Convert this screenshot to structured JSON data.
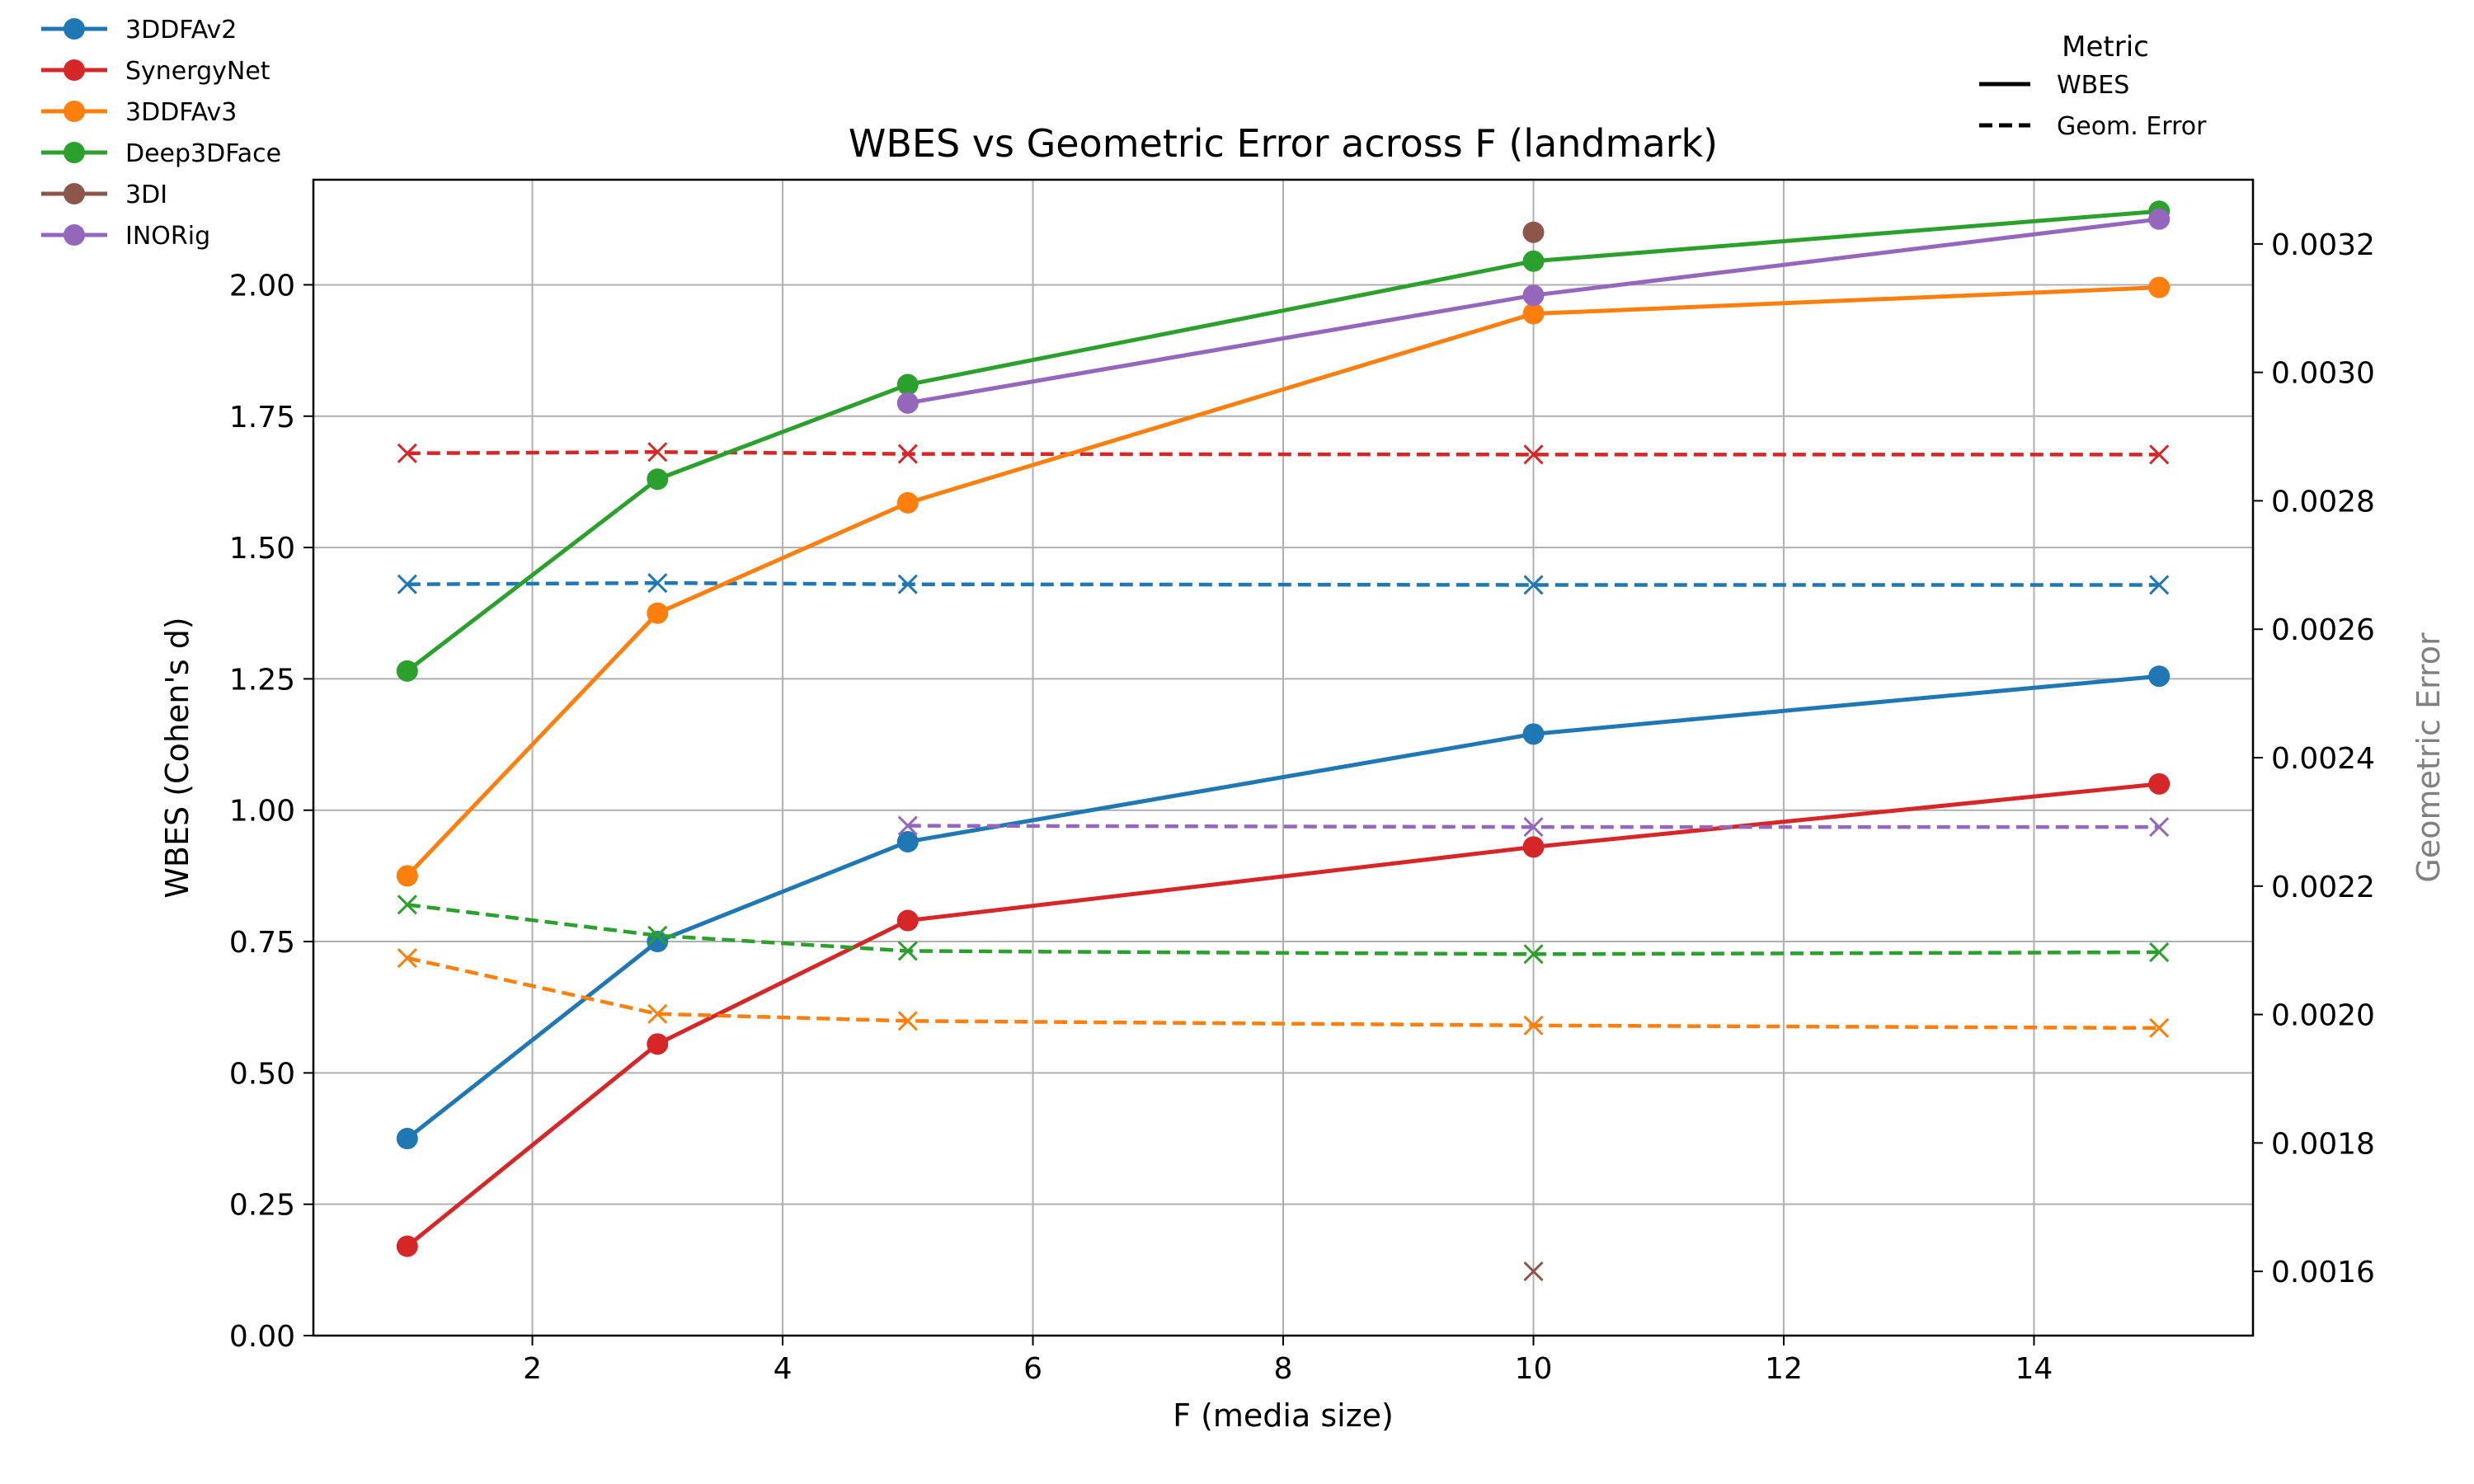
{
  "chart_data": {
    "type": "line",
    "title": "WBES vs Geometric Error across F (landmark)",
    "xlabel": "F (media size)",
    "ylabel": "WBES (Cohen's d)",
    "y2label": "Geometric Error",
    "xlim": [
      0.25,
      15.75
    ],
    "ylim": [
      0,
      2.2
    ],
    "y2lim": [
      0.0015,
      0.0033
    ],
    "xticks": [
      "2",
      "4",
      "6",
      "8",
      "10",
      "12",
      "14"
    ],
    "yticks": [
      "0.00",
      "0.25",
      "0.50",
      "0.75",
      "1.00",
      "1.25",
      "1.50",
      "1.75",
      "2.00"
    ],
    "y2ticks": [
      "0.0016",
      "0.0018",
      "0.0020",
      "0.0022",
      "0.0024",
      "0.0026",
      "0.0028",
      "0.0030",
      "0.0032"
    ],
    "grid": true,
    "legend": {
      "placement": "top-left outside"
    },
    "metric_legend": {
      "title": "Metric",
      "entries": [
        "WBES",
        "Geom. Error"
      ]
    },
    "series": [
      {
        "name": "3DDFAv2",
        "color": "#1f77b4",
        "x": [
          1,
          3,
          5,
          10,
          15
        ],
        "wbes": [
          0.375,
          0.75,
          0.94,
          1.145,
          1.255
        ],
        "geom": [
          0.00267,
          0.002672,
          0.00267,
          0.002669,
          0.002669
        ]
      },
      {
        "name": "SynergyNet",
        "color": "#d62728",
        "x": [
          1,
          3,
          5,
          10,
          15
        ],
        "wbes": [
          0.17,
          0.555,
          0.79,
          0.93,
          1.05
        ],
        "geom": [
          0.002874,
          0.002876,
          0.002873,
          0.002872,
          0.002872
        ]
      },
      {
        "name": "3DDFAv3",
        "color": "#ff7f0e",
        "x": [
          1,
          3,
          5,
          10,
          15
        ],
        "wbes": [
          0.875,
          1.375,
          1.585,
          1.945,
          1.995
        ],
        "geom": [
          0.002088,
          0.002001,
          0.00199,
          0.001983,
          0.001979
        ]
      },
      {
        "name": "Deep3DFace",
        "color": "#2ca02c",
        "x": [
          1,
          3,
          5,
          10,
          15
        ],
        "wbes": [
          1.265,
          1.63,
          1.81,
          2.045,
          2.14
        ],
        "geom": [
          0.002171,
          0.002123,
          0.002099,
          0.002094,
          0.002097
        ]
      },
      {
        "name": "3DI",
        "color": "#8c564b",
        "x": [
          10
        ],
        "wbes": [
          2.1
        ],
        "geom": [
          0.0016
        ]
      },
      {
        "name": "INORig",
        "color": "#9467bd",
        "x": [
          5,
          10,
          15
        ],
        "wbes": [
          1.775,
          1.98,
          2.125
        ],
        "geom": [
          0.002294,
          0.002292,
          0.002292
        ]
      }
    ]
  }
}
